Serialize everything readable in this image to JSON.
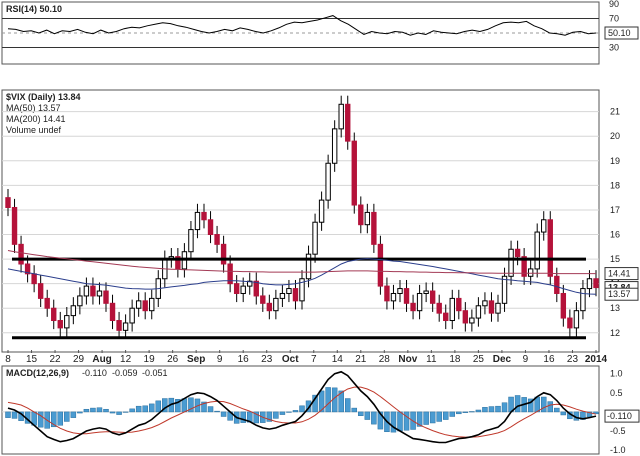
{
  "chart_data": [
    {
      "type": "line",
      "panel": "rsi",
      "legend": "RSI(14) 50.10",
      "ylim": [
        10,
        90
      ],
      "ticks": [
        90,
        70,
        50,
        30
      ],
      "ref_lines": [
        70,
        30
      ],
      "last_value_label": "50.10",
      "series": [
        {
          "values": [
            56,
            55,
            52,
            53,
            50,
            54,
            49,
            53,
            52,
            55,
            51,
            49,
            54,
            50,
            52,
            56,
            58,
            57,
            60,
            62,
            64,
            63,
            60,
            58,
            55,
            52,
            50,
            52,
            55,
            53,
            57,
            55,
            52,
            50,
            53,
            57,
            62,
            65,
            64,
            66,
            68,
            71,
            74,
            67,
            62,
            55,
            48,
            52,
            50,
            49,
            52,
            51,
            47,
            50,
            48,
            53,
            51,
            50,
            49,
            52,
            54,
            52,
            55,
            60,
            64,
            65,
            64,
            66,
            60,
            56,
            50,
            49,
            47,
            51,
            52,
            49,
            50
          ]
        }
      ]
    },
    {
      "type": "candlestick",
      "panel": "price",
      "legend": [
        "$VIX (Daily) 13.84",
        "MA(50) 13.57",
        "MA(200) 14.41",
        "Volume undef"
      ],
      "ylim": [
        11.3,
        21.8
      ],
      "ticks": [
        21,
        20,
        19,
        18,
        17,
        16,
        15,
        14,
        13,
        12
      ],
      "x_ticks": [
        "8",
        "15",
        "22",
        "29",
        "Aug",
        "12",
        "19",
        "26",
        "Sep",
        "9",
        "16",
        "23",
        "Oct",
        "7",
        "14",
        "21",
        "28",
        "Nov",
        "11",
        "18",
        "25",
        "Dec",
        "9",
        "16",
        "23",
        "2014"
      ],
      "price_tags": [
        "14.41",
        "13.84",
        "13.57"
      ],
      "support_resistance": [
        15.0,
        11.8
      ],
      "closes": [
        17.1,
        15.6,
        14.8,
        14.4,
        14.0,
        13.4,
        13.0,
        12.5,
        12.2,
        12.7,
        13.1,
        13.5,
        13.9,
        13.5,
        13.7,
        13.2,
        12.5,
        12.1,
        12.4,
        13.0,
        13.3,
        12.9,
        13.4,
        14.2,
        15.0,
        15.1,
        14.6,
        15.3,
        16.2,
        16.9,
        16.6,
        16.0,
        15.6,
        14.8,
        14.0,
        13.6,
        13.9,
        14.1,
        13.5,
        13.2,
        12.9,
        13.4,
        13.6,
        13.8,
        13.3,
        14.2,
        15.2,
        16.5,
        17.4,
        18.9,
        20.3,
        21.3,
        19.8,
        17.2,
        16.4,
        16.9,
        15.6,
        13.9,
        13.3,
        13.6,
        13.8,
        13.2,
        12.9,
        13.6,
        13.7,
        13.2,
        12.8,
        12.5,
        13.4,
        12.9,
        12.4,
        12.6,
        13.1,
        13.3,
        12.8,
        13.2,
        14.3,
        15.4,
        15.1,
        14.3,
        14.6,
        16.1,
        16.6,
        14.3,
        13.6,
        12.6,
        12.2,
        12.9,
        13.8,
        14.2,
        13.84
      ],
      "ma50": [
        14.6,
        14.55,
        14.5,
        14.45,
        14.4,
        14.35,
        14.3,
        14.25,
        14.2,
        14.15,
        14.1,
        14.05,
        14.0,
        13.98,
        13.96,
        13.94,
        13.9,
        13.86,
        13.82,
        13.8,
        13.79,
        13.78,
        13.78,
        13.8,
        13.83,
        13.87,
        13.9,
        13.93,
        13.97,
        14.0,
        14.05,
        14.08,
        14.1,
        14.12,
        14.12,
        14.12,
        14.1,
        14.08,
        14.05,
        14.0,
        13.97,
        13.95,
        13.95,
        13.97,
        14.0,
        14.05,
        14.12,
        14.22,
        14.35,
        14.5,
        14.65,
        14.8,
        14.9,
        14.95,
        15.0,
        15.02,
        15.0,
        14.98,
        14.95,
        14.92,
        14.9,
        14.86,
        14.82,
        14.78,
        14.74,
        14.7,
        14.65,
        14.6,
        14.55,
        14.5,
        14.45,
        14.4,
        14.35,
        14.3,
        14.25,
        14.2,
        14.17,
        14.15,
        14.12,
        14.1,
        14.07,
        14.05,
        14.0,
        13.95,
        13.88,
        13.8,
        13.72,
        13.65,
        13.6,
        13.58,
        13.57
      ],
      "ma200": [
        15.35,
        15.3,
        15.26,
        15.22,
        15.18,
        15.14,
        15.1,
        15.07,
        15.04,
        15.01,
        14.98,
        14.95,
        14.92,
        14.89,
        14.86,
        14.83,
        14.8,
        14.77,
        14.74,
        14.71,
        14.68,
        14.66,
        14.64,
        14.62,
        14.6,
        14.59,
        14.58,
        14.57,
        14.56,
        14.55,
        14.54,
        14.53,
        14.52,
        14.51,
        14.5,
        14.5,
        14.49,
        14.49,
        14.48,
        14.48,
        14.47,
        14.47,
        14.47,
        14.47,
        14.47,
        14.47,
        14.47,
        14.47,
        14.48,
        14.49,
        14.5,
        14.51,
        14.52,
        14.52,
        14.52,
        14.52,
        14.51,
        14.5,
        14.5,
        14.49,
        14.49,
        14.48,
        14.48,
        14.47,
        14.47,
        14.46,
        14.46,
        14.45,
        14.45,
        14.44,
        14.44,
        14.44,
        14.43,
        14.43,
        14.43,
        14.42,
        14.42,
        14.42,
        14.42,
        14.42,
        14.42,
        14.42,
        14.42,
        14.42,
        14.41,
        14.41,
        14.41,
        14.41,
        14.41,
        14.41,
        14.41
      ]
    },
    {
      "type": "bar+line",
      "panel": "macd",
      "legend_prefix": "MACD(12,26,9)",
      "legend_values": [
        "-0.110",
        "-0.059",
        "-0.051"
      ],
      "legend_colors": [
        "#000000",
        "#c0392b",
        "#2a7fb8"
      ],
      "ylim": [
        -1.05,
        1.15
      ],
      "ticks": [
        "1.0",
        "0.5",
        "-0.5",
        "-1.0"
      ],
      "last_value_label": "-0.110",
      "macd": [
        0.1,
        0.05,
        -0.05,
        -0.2,
        -0.35,
        -0.5,
        -0.65,
        -0.72,
        -0.78,
        -0.75,
        -0.7,
        -0.6,
        -0.5,
        -0.45,
        -0.42,
        -0.45,
        -0.55,
        -0.6,
        -0.55,
        -0.45,
        -0.35,
        -0.3,
        -0.2,
        -0.05,
        0.1,
        0.2,
        0.25,
        0.35,
        0.45,
        0.5,
        0.48,
        0.4,
        0.3,
        0.15,
        0.0,
        -0.15,
        -0.2,
        -0.25,
        -0.35,
        -0.42,
        -0.45,
        -0.42,
        -0.35,
        -0.3,
        -0.25,
        -0.1,
        0.1,
        0.35,
        0.6,
        0.85,
        1.0,
        1.05,
        0.95,
        0.75,
        0.55,
        0.4,
        0.2,
        -0.05,
        -0.25,
        -0.4,
        -0.5,
        -0.6,
        -0.7,
        -0.72,
        -0.75,
        -0.78,
        -0.8,
        -0.8,
        -0.75,
        -0.7,
        -0.68,
        -0.65,
        -0.6,
        -0.5,
        -0.45,
        -0.4,
        -0.25,
        0.0,
        0.15,
        0.2,
        0.25,
        0.4,
        0.5,
        0.45,
        0.3,
        0.1,
        -0.05,
        -0.15,
        -0.18,
        -0.15,
        -0.11
      ],
      "signal": [
        0.25,
        0.22,
        0.18,
        0.1,
        0.0,
        -0.1,
        -0.22,
        -0.33,
        -0.43,
        -0.5,
        -0.55,
        -0.57,
        -0.57,
        -0.55,
        -0.53,
        -0.52,
        -0.52,
        -0.53,
        -0.54,
        -0.53,
        -0.5,
        -0.46,
        -0.41,
        -0.34,
        -0.25,
        -0.16,
        -0.08,
        0.0,
        0.08,
        0.16,
        0.22,
        0.26,
        0.28,
        0.27,
        0.22,
        0.15,
        0.08,
        0.02,
        -0.06,
        -0.14,
        -0.2,
        -0.25,
        -0.28,
        -0.29,
        -0.29,
        -0.26,
        -0.19,
        -0.09,
        0.05,
        0.21,
        0.37,
        0.5,
        0.6,
        0.65,
        0.65,
        0.6,
        0.52,
        0.4,
        0.27,
        0.13,
        0.0,
        -0.12,
        -0.24,
        -0.34,
        -0.42,
        -0.49,
        -0.55,
        -0.6,
        -0.63,
        -0.65,
        -0.66,
        -0.66,
        -0.65,
        -0.62,
        -0.59,
        -0.55,
        -0.49,
        -0.39,
        -0.28,
        -0.18,
        -0.09,
        0.01,
        0.11,
        0.18,
        0.2,
        0.18,
        0.13,
        0.07,
        0.02,
        -0.02,
        -0.06
      ]
    }
  ],
  "colors": {
    "up": "#ffffff",
    "down": "#b5123a",
    "black_candle": "#000000",
    "ma50": "#2b3e8c",
    "ma200": "#a33a55",
    "hist": "#4a9bd1",
    "macd": "#000000",
    "signal": "#c0392b"
  }
}
